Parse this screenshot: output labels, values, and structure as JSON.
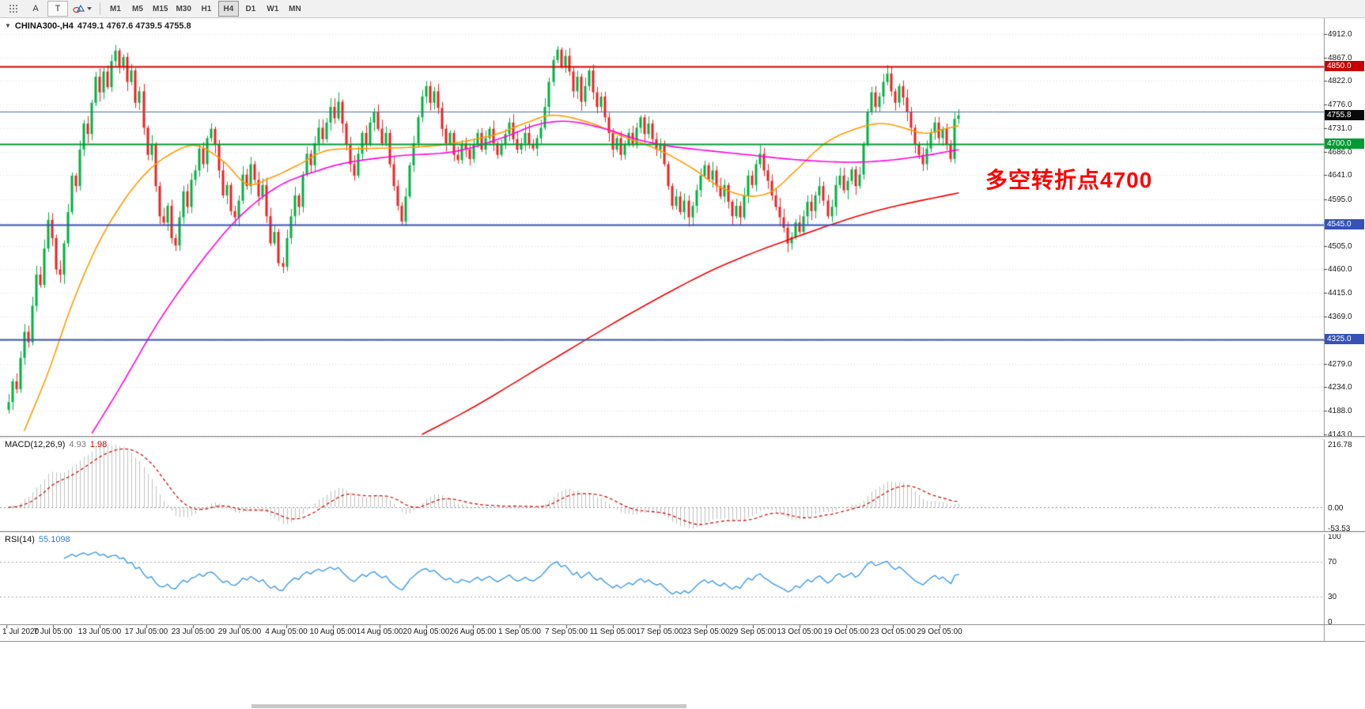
{
  "toolbar": {
    "tools": [
      {
        "id": "cursor-pattern",
        "label": ""
      },
      {
        "id": "text",
        "label": "A"
      },
      {
        "id": "text-label",
        "label": "T"
      },
      {
        "id": "shapes",
        "label": ""
      }
    ],
    "timeframes": [
      "M1",
      "M5",
      "M15",
      "M30",
      "H1",
      "H4",
      "D1",
      "W1",
      "MN"
    ],
    "active_timeframe": "H4"
  },
  "chart_data": {
    "type": "candlestick",
    "title": "CHINA300-,H4",
    "ohlc_label": "4749.1 4767.6 4739.5 4755.8",
    "current_bar": {
      "open": 4749.1,
      "high": 4767.6,
      "low": 4739.5,
      "close": 4755.8
    },
    "first_open": 4190,
    "closes": [
      4205,
      4245,
      4230,
      4290,
      4340,
      4320,
      4390,
      4450,
      4430,
      4500,
      4555,
      4520,
      4460,
      4450,
      4510,
      4570,
      4640,
      4620,
      4690,
      4740,
      4720,
      4780,
      4830,
      4800,
      4840,
      4810,
      4860,
      4880,
      4850,
      4868,
      4820,
      4842,
      4780,
      4802,
      4732,
      4680,
      4700,
      4620,
      4562,
      4550,
      4582,
      4520,
      4506,
      4560,
      4610,
      4580,
      4632,
      4650,
      4692,
      4662,
      4712,
      4730,
      4700,
      4650,
      4602,
      4622,
      4572,
      4560,
      4592,
      4642,
      4620,
      4662,
      4632,
      4600,
      4622,
      4562,
      4510,
      4532,
      4472,
      4465,
      4520,
      4562,
      4602,
      4580,
      4642,
      4682,
      4660,
      4702,
      4732,
      4710,
      4742,
      4772,
      4750,
      4782,
      4740,
      4700,
      4662,
      4640,
      4682,
      4722,
      4700,
      4742,
      4762,
      4730,
      4702,
      4722,
      4662,
      4620,
      4582,
      4552,
      4600,
      4660,
      4702,
      4752,
      4792,
      4812,
      4780,
      4802,
      4770,
      4730,
      4702,
      4722,
      4680,
      4670,
      4702,
      4690,
      4672,
      4700,
      4722,
      4690,
      4712,
      4730,
      4702,
      4680,
      4700,
      4720,
      4742,
      4710,
      4690,
      4702,
      4722,
      4700,
      4692,
      4712,
      4732,
      4772,
      4820,
      4862,
      4882,
      4850,
      4870,
      4840,
      4802,
      4830,
      4782,
      4812,
      4842,
      4800,
      4772,
      4792,
      4752,
      4722,
      4690,
      4712,
      4680,
      4700,
      4722,
      4700,
      4732,
      4752,
      4720,
      4740,
      4710,
      4690,
      4702,
      4662,
      4620,
      4582,
      4600,
      4570,
      4592,
      4560,
      4582,
      4612,
      4640,
      4660,
      4632,
      4650,
      4620,
      4600,
      4622,
      4590,
      4562,
      4582,
      4560,
      4602,
      4640,
      4622,
      4662,
      4682,
      4650,
      4630,
      4602,
      4580,
      4560,
      4540,
      4510,
      4522,
      4550,
      4532,
      4562,
      4590,
      4572,
      4602,
      4620,
      4592,
      4562,
      4580,
      4622,
      4640,
      4612,
      4630,
      4652,
      4620,
      4642,
      4700,
      4762,
      4800,
      4772,
      4792,
      4820,
      4836,
      4802,
      4780,
      4812,
      4790,
      4762,
      4732,
      4700,
      4680,
      4662,
      4692,
      4722,
      4742,
      4712,
      4730,
      4700,
      4672,
      4749.1,
      4755.8
    ],
    "colors": {
      "bull": "#00B140",
      "bear": "#F02020",
      "grid": "rgba(140,140,140,0.35)",
      "axis_line": "#909090"
    },
    "price_axis": {
      "ticks": [
        4912.0,
        4867.0,
        4822.0,
        4776.0,
        4731.0,
        4686.0,
        4641.0,
        4595.0,
        4550.0,
        4505.0,
        4460.0,
        4415.0,
        4369.0,
        4324.0,
        4279.0,
        4234.0,
        4188.0,
        4143.0
      ]
    },
    "time_axis": {
      "labels": [
        "1 Jul 2020",
        "7 Jul 05:00",
        "13 Jul 05:00",
        "17 Jul 05:00",
        "23 Jul 05:00",
        "29 Jul 05:00",
        "4 Aug 05:00",
        "10 Aug 05:00",
        "14 Aug 05:00",
        "20 Aug 05:00",
        "26 Aug 05:00",
        "1 Sep 05:00",
        "7 Sep 05:00",
        "11 Sep 05:00",
        "17 Sep 05:00",
        "23 Sep 05:00",
        "29 Sep 05:00",
        "13 Oct 05:00",
        "19 Oct 05:00",
        "23 Oct 05:00",
        "29 Oct 05:00"
      ]
    },
    "levels": [
      {
        "price": 4850.0,
        "color": "#D40000",
        "width": 2,
        "tag": "4850.0",
        "tag_bg": "#C80000"
      },
      {
        "price": 4763.0,
        "color": "#4A6E9E",
        "width": 1
      },
      {
        "price": 4700.0,
        "color": "#009B33",
        "width": 2,
        "tag": "4700.0",
        "tag_bg": "#009B33"
      },
      {
        "price": 4545.0,
        "color": "#3652B8",
        "width": 2,
        "tag": "4545.0",
        "tag_bg": "#3652B8"
      },
      {
        "price": 4325.0,
        "color": "#3652B8",
        "width": 2,
        "tag": "4325.0",
        "tag_bg": "#3652B8"
      }
    ],
    "last_price_tag": {
      "value": 4755.8,
      "label": "4755.8",
      "bg": "#0A0A0A"
    },
    "moving_averages": [
      {
        "name": "ma-fast-orange",
        "color": "#FF9C00",
        "points": [
          [
            4,
            4150
          ],
          [
            10,
            4262
          ],
          [
            16,
            4392
          ],
          [
            22,
            4500
          ],
          [
            28,
            4580
          ],
          [
            34,
            4640
          ],
          [
            40,
            4678
          ],
          [
            47,
            4698
          ],
          [
            54,
            4668
          ],
          [
            60,
            4624
          ],
          [
            66,
            4636
          ],
          [
            73,
            4661
          ],
          [
            80,
            4688
          ],
          [
            90,
            4692
          ],
          [
            100,
            4694
          ],
          [
            110,
            4700
          ],
          [
            122,
            4718
          ],
          [
            130,
            4741
          ],
          [
            137,
            4756
          ],
          [
            146,
            4742
          ],
          [
            155,
            4714
          ],
          [
            164,
            4688
          ],
          [
            172,
            4654
          ],
          [
            179,
            4618
          ],
          [
            186,
            4601
          ],
          [
            192,
            4610
          ],
          [
            198,
            4650
          ],
          [
            205,
            4700
          ],
          [
            212,
            4727
          ],
          [
            220,
            4740
          ],
          [
            230,
            4722
          ],
          [
            235,
            4729
          ],
          [
            239,
            4736
          ]
        ]
      },
      {
        "name": "ma-medium-magenta",
        "color": "#FF00E6",
        "points": [
          [
            21,
            4145
          ],
          [
            28,
            4232
          ],
          [
            38,
            4362
          ],
          [
            48,
            4470
          ],
          [
            58,
            4560
          ],
          [
            68,
            4620
          ],
          [
            78,
            4650
          ],
          [
            86,
            4666
          ],
          [
            98,
            4678
          ],
          [
            112,
            4686
          ],
          [
            124,
            4712
          ],
          [
            133,
            4738
          ],
          [
            141,
            4744
          ],
          [
            150,
            4730
          ],
          [
            158,
            4710
          ],
          [
            166,
            4697
          ],
          [
            176,
            4688
          ],
          [
            186,
            4680
          ],
          [
            196,
            4672
          ],
          [
            206,
            4667
          ],
          [
            214,
            4666
          ],
          [
            222,
            4670
          ],
          [
            230,
            4678
          ],
          [
            236,
            4686
          ],
          [
            239,
            4690
          ]
        ]
      },
      {
        "name": "ma-long-red",
        "color": "#F00000",
        "points": [
          [
            104,
            4143
          ],
          [
            118,
            4200
          ],
          [
            138,
            4292
          ],
          [
            158,
            4382
          ],
          [
            178,
            4462
          ],
          [
            198,
            4522
          ],
          [
            218,
            4572
          ],
          [
            239,
            4607
          ]
        ]
      }
    ],
    "annotation": {
      "text": "多空转折点4700",
      "color": "#FF0000"
    },
    "indicators": {
      "macd": {
        "label": "MACD(12,26,9)",
        "fast": 12,
        "slow": 26,
        "signal": 9,
        "value_main": "4.93",
        "value_signal": "1.98",
        "axis_labels": [
          "216.78",
          "0.00",
          "-53.53"
        ],
        "histogram_color": "#BFBFBF",
        "signal_color": "#CC0000"
      },
      "rsi": {
        "label": "RSI(14)",
        "period": 14,
        "value": "55.1098",
        "axis_labels": [
          "100",
          "70",
          "30",
          "0"
        ],
        "guide_levels": [
          70,
          30
        ],
        "color": "#3E9BE9"
      }
    }
  }
}
